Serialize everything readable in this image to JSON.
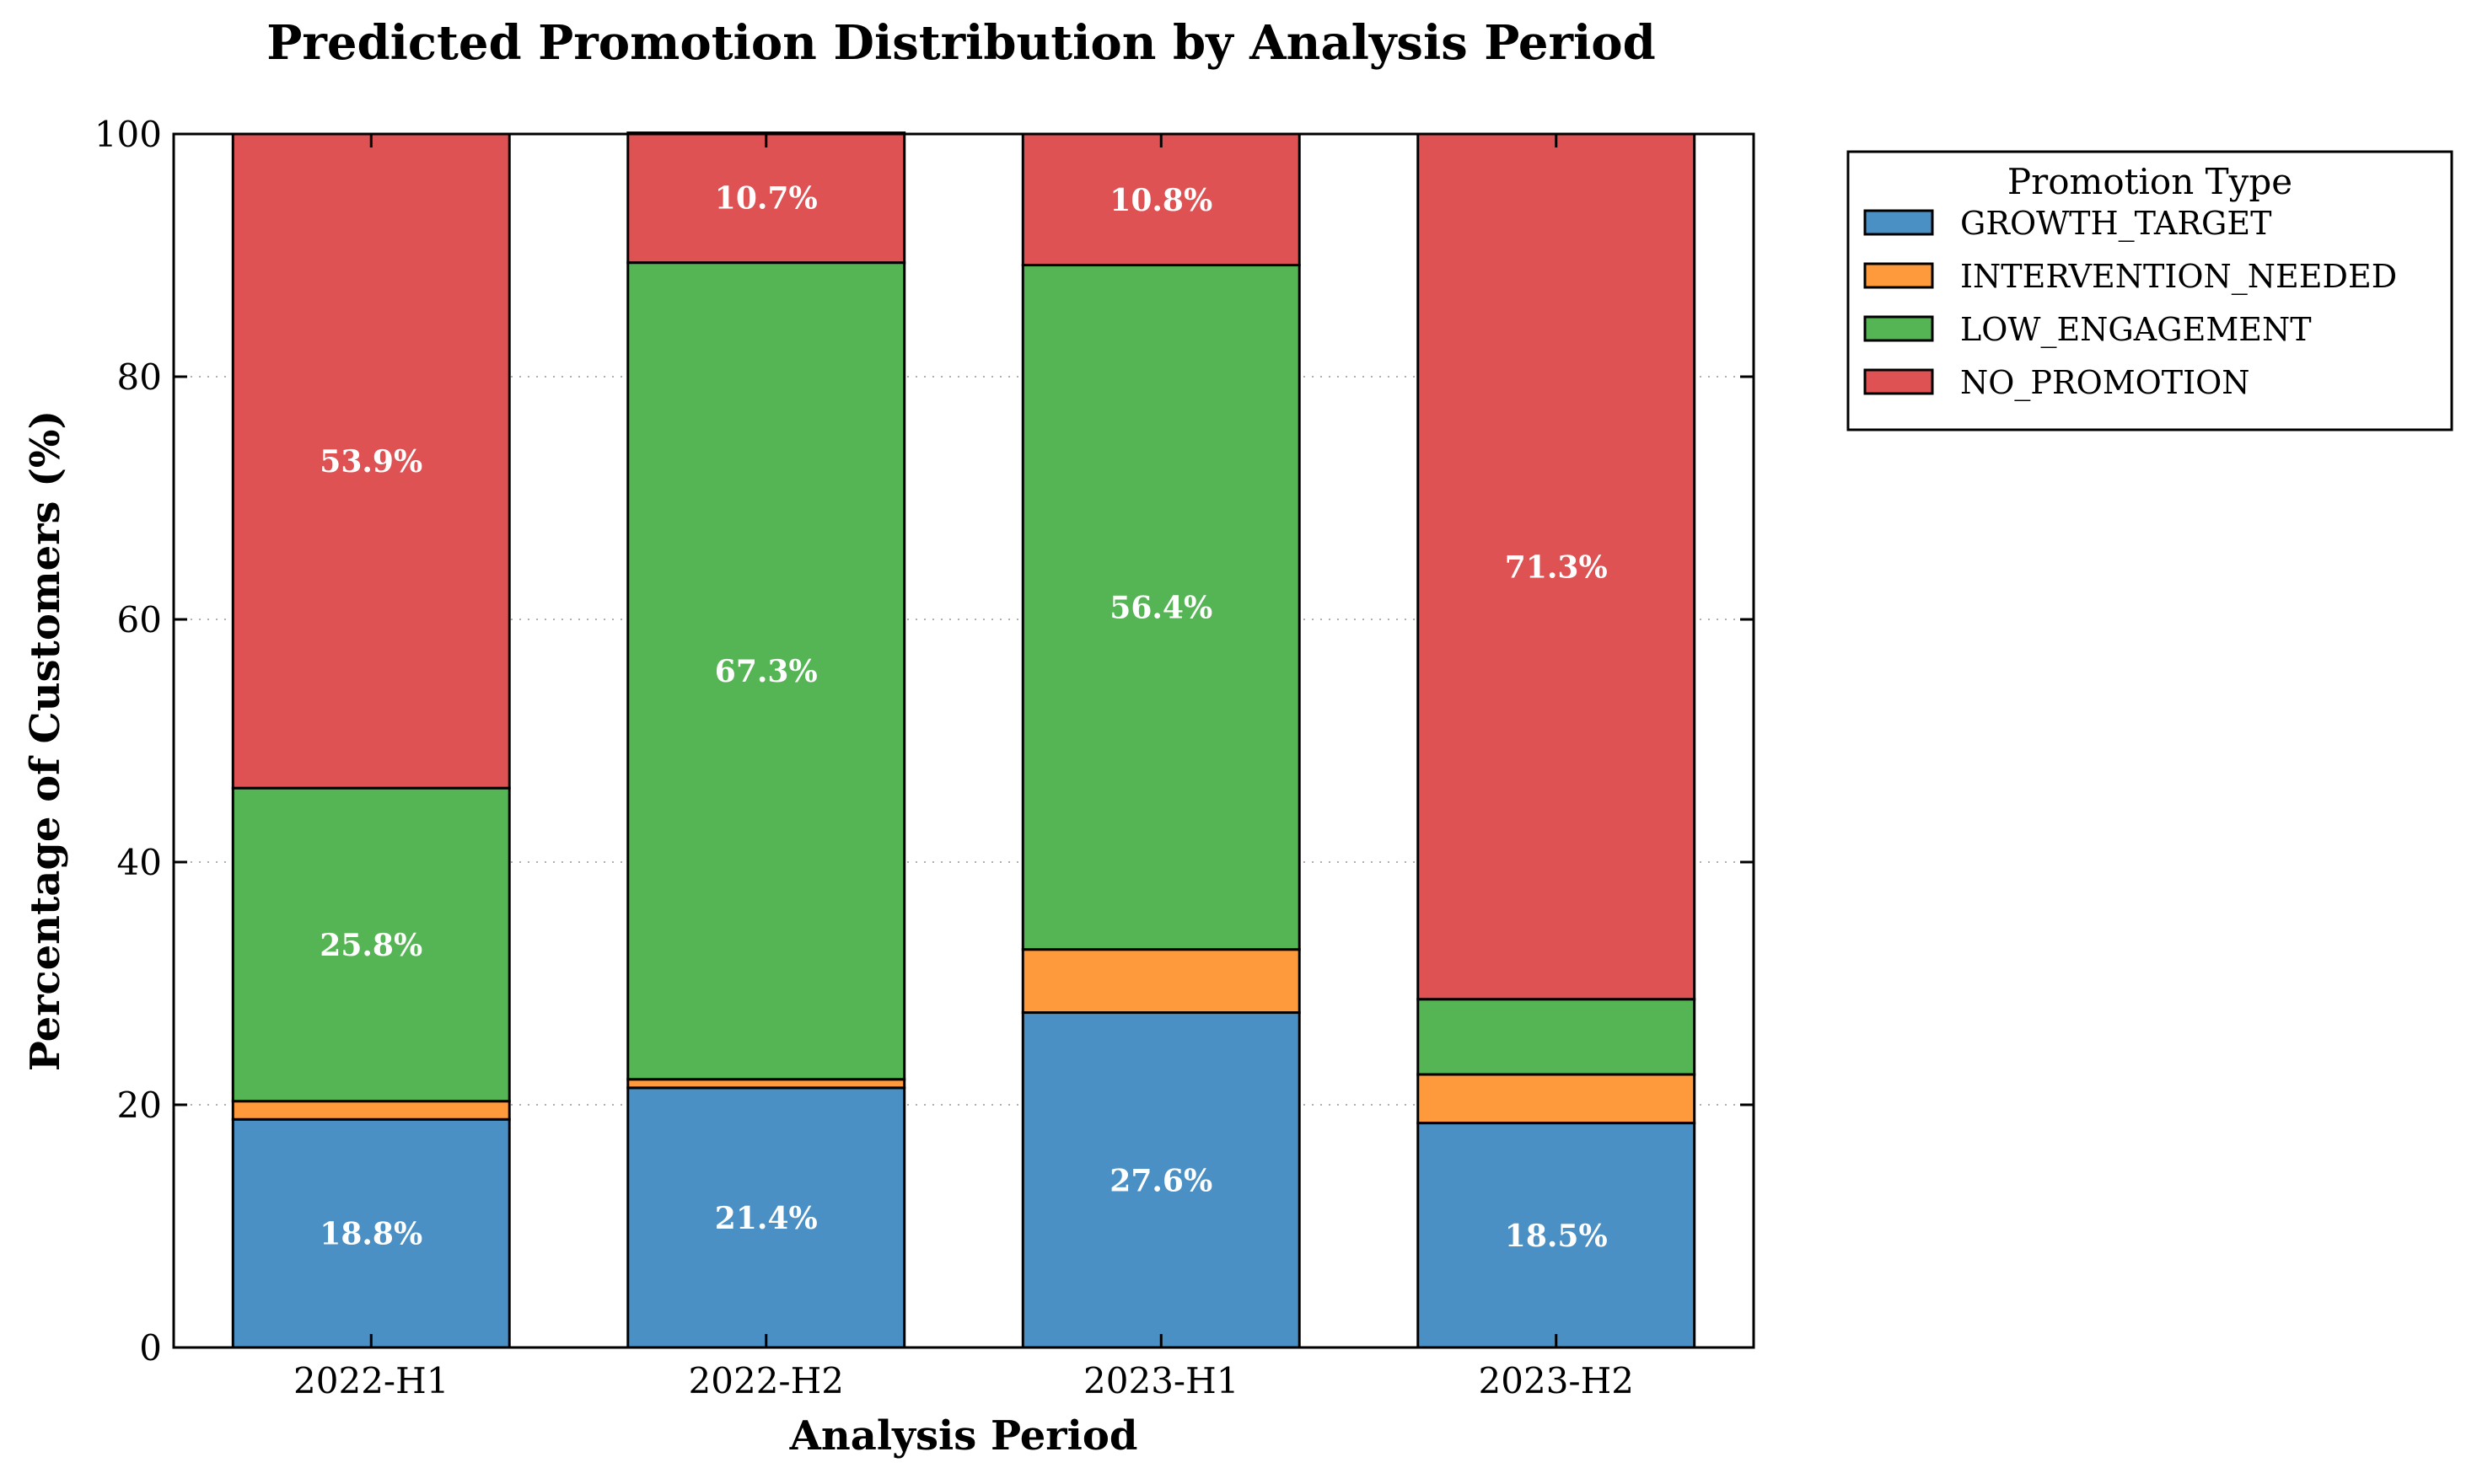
{
  "chart_data": {
    "type": "bar",
    "stacked": true,
    "title": "Predicted Promotion Distribution by Analysis Period",
    "xlabel": "Analysis Period",
    "ylabel": "Percentage of Customers (%)",
    "ylim": [
      0,
      100
    ],
    "yticks": [
      "0",
      "20",
      "40",
      "60",
      "80",
      "100"
    ],
    "grid": "horizontal dotted",
    "legend_title": "Promotion Type",
    "legend_position": "outside upper-right",
    "categories": [
      "2022-H1",
      "2022-H2",
      "2023-H1",
      "2023-H2"
    ],
    "series": [
      {
        "name": "GROWTH_TARGET",
        "color": "#4a90c4",
        "values": [
          18.8,
          21.4,
          27.6,
          18.5
        ],
        "labels": [
          "18.8%",
          "21.4%",
          "27.6%",
          "18.5%"
        ]
      },
      {
        "name": "INTERVENTION_NEEDED",
        "color": "#ff9a3c",
        "values": [
          1.5,
          0.7,
          5.2,
          4.0
        ],
        "labels": [
          "",
          "",
          "",
          ""
        ]
      },
      {
        "name": "LOW_ENGAGEMENT",
        "color": "#55b454",
        "values": [
          25.8,
          67.3,
          56.4,
          6.2
        ],
        "labels": [
          "25.8%",
          "67.3%",
          "56.4%",
          ""
        ]
      },
      {
        "name": "NO_PROMOTION",
        "color": "#de5254",
        "values": [
          53.9,
          10.7,
          10.8,
          71.3
        ],
        "labels": [
          "53.9%",
          "10.7%",
          "10.8%",
          "71.3%"
        ]
      }
    ]
  }
}
